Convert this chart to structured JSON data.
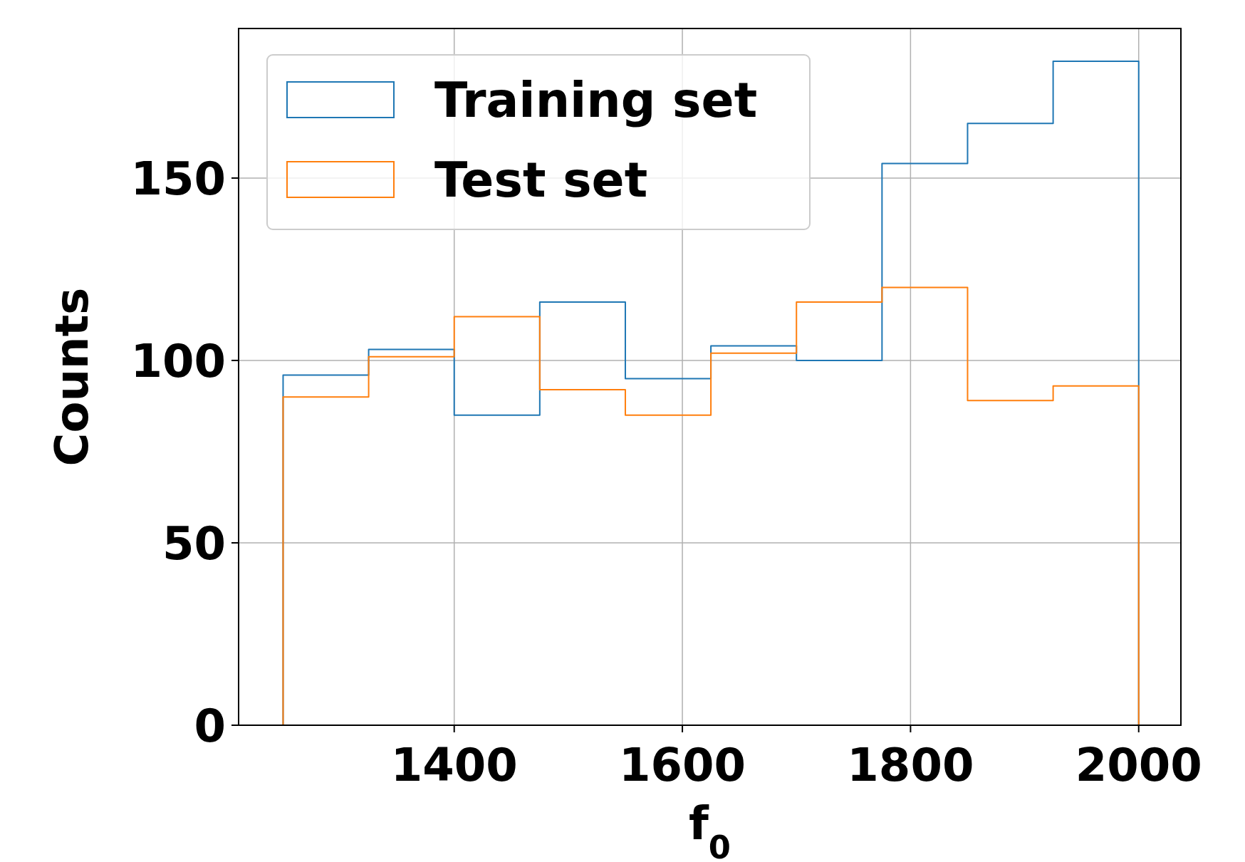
{
  "chart_data": {
    "type": "histogram",
    "xlabel": "f$_{0}$",
    "ylabel": "Counts",
    "bins": [
      1250,
      1325,
      1400,
      1475,
      1550,
      1625,
      1700,
      1775,
      1850,
      1925,
      2000
    ],
    "series": [
      {
        "name": "Training set",
        "color": "#1f77b4",
        "values": [
          96,
          103,
          85,
          116,
          95,
          104,
          100,
          154,
          165,
          182
        ]
      },
      {
        "name": "Test set",
        "color": "#ff7f0e",
        "values": [
          90,
          101,
          112,
          92,
          85,
          102,
          116,
          120,
          89,
          93
        ]
      }
    ],
    "xlim": [
      1211,
      2037
    ],
    "ylim": [
      0,
      191
    ],
    "xticks": [
      1400,
      1600,
      1800,
      2000
    ],
    "yticks": [
      0,
      50,
      100,
      150
    ],
    "grid": true,
    "legend": "top left"
  }
}
